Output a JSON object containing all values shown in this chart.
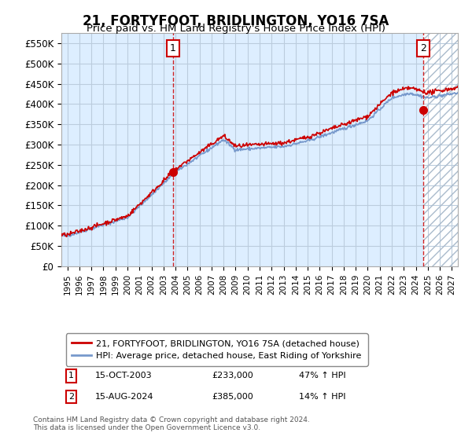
{
  "title": "21, FORTYFOOT, BRIDLINGTON, YO16 7SA",
  "subtitle": "Price paid vs. HM Land Registry's House Price Index (HPI)",
  "legend_line1": "21, FORTYFOOT, BRIDLINGTON, YO16 7SA (detached house)",
  "legend_line2": "HPI: Average price, detached house, East Riding of Yorkshire",
  "footnote1": "Contains HM Land Registry data © Crown copyright and database right 2024.",
  "footnote2": "This data is licensed under the Open Government Licence v3.0.",
  "sale1_date": "15-OCT-2003",
  "sale1_price": "£233,000",
  "sale1_hpi": "47% ↑ HPI",
  "sale1_x": 2003.79,
  "sale1_y": 233000,
  "sale2_date": "15-AUG-2024",
  "sale2_price": "£385,000",
  "sale2_hpi": "14% ↑ HPI",
  "sale2_x": 2024.62,
  "sale2_y": 385000,
  "red_color": "#cc0000",
  "blue_color": "#7799cc",
  "hatch_color": "#aabbcc",
  "bg_color": "#ddeeff",
  "grid_color": "#bbccdd",
  "ylim": [
    0,
    575000
  ],
  "xlim": [
    1994.5,
    2027.5
  ],
  "yticks": [
    0,
    50000,
    100000,
    150000,
    200000,
    250000,
    300000,
    350000,
    400000,
    450000,
    500000,
    550000
  ],
  "ytick_labels": [
    "£0",
    "£50K",
    "£100K",
    "£150K",
    "£200K",
    "£250K",
    "£300K",
    "£350K",
    "£400K",
    "£450K",
    "£500K",
    "£550K"
  ],
  "xticks": [
    1995,
    1996,
    1997,
    1998,
    1999,
    2000,
    2001,
    2002,
    2003,
    2004,
    2005,
    2006,
    2007,
    2008,
    2009,
    2010,
    2011,
    2012,
    2013,
    2014,
    2015,
    2016,
    2017,
    2018,
    2019,
    2020,
    2021,
    2022,
    2023,
    2024,
    2025,
    2026,
    2027
  ]
}
